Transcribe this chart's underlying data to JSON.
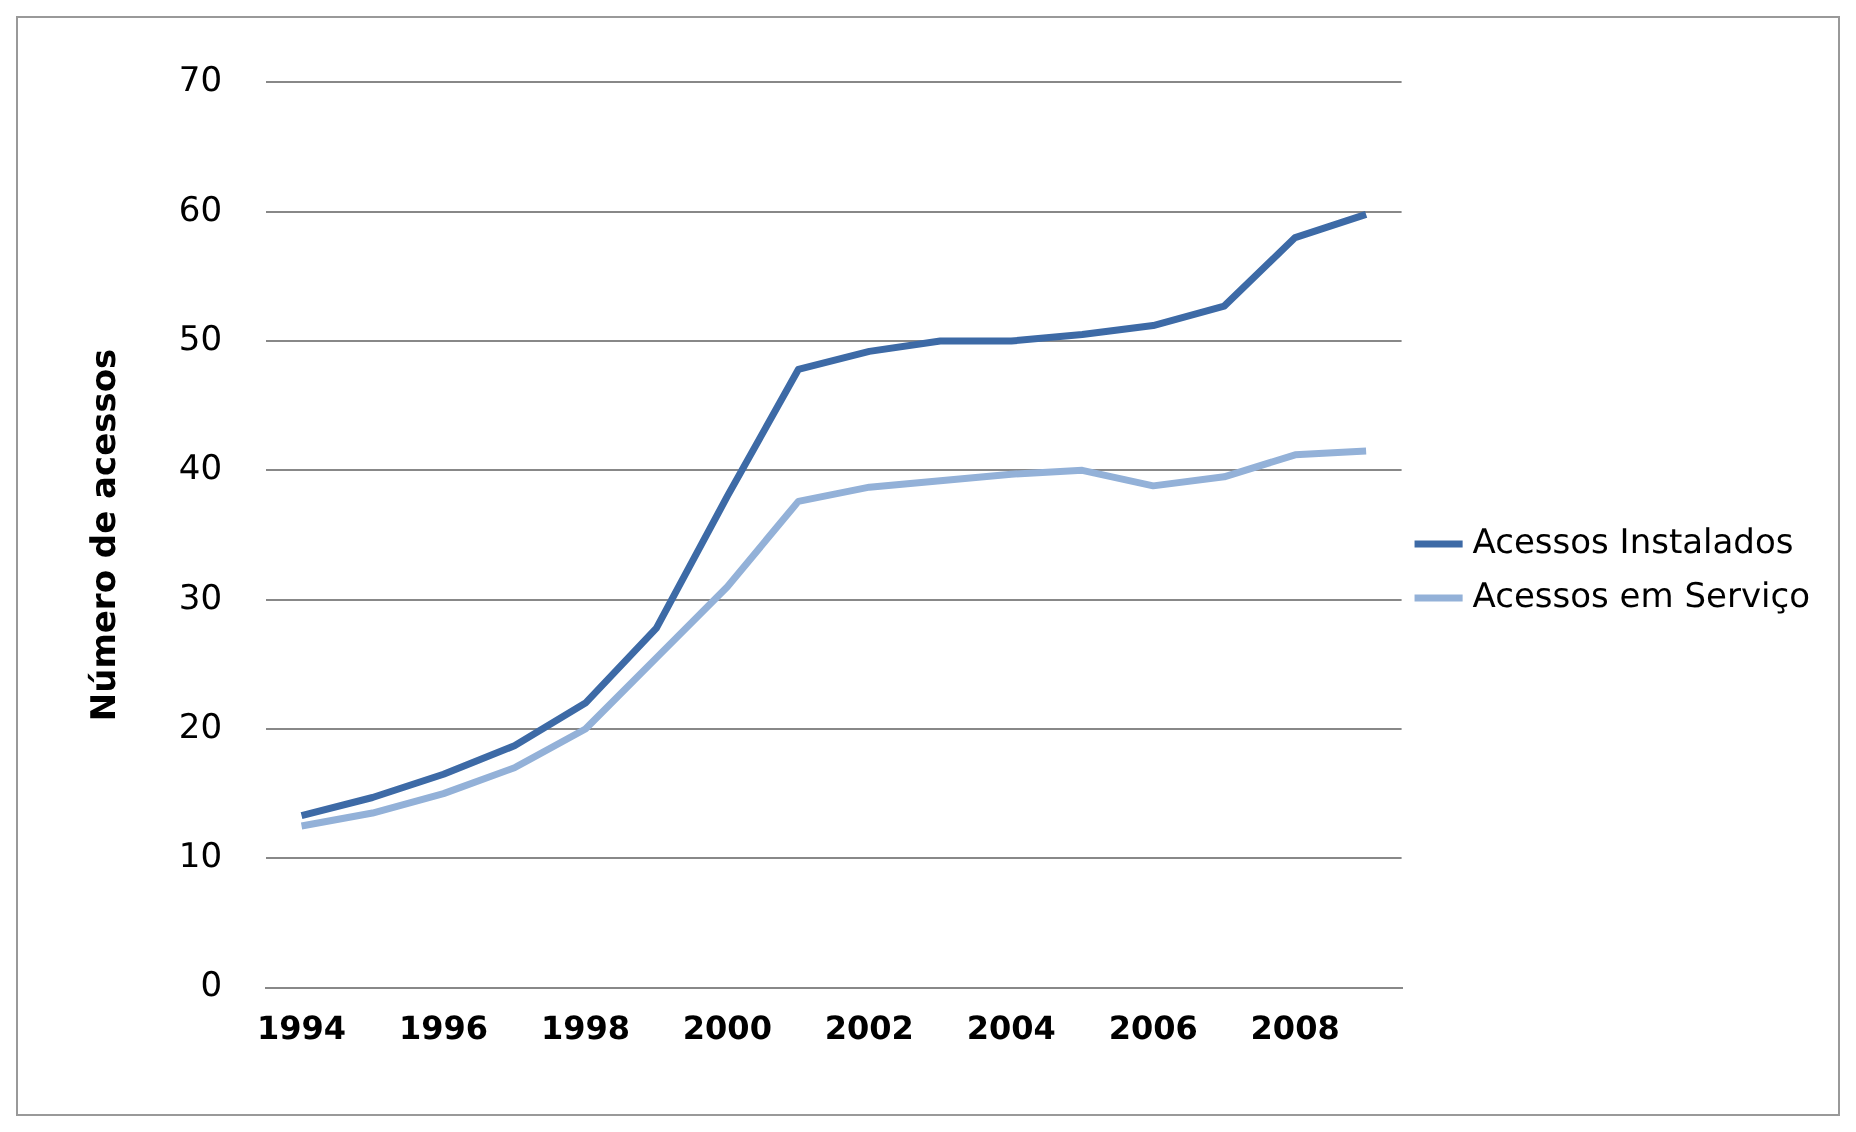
{
  "chart_data": {
    "type": "line",
    "ylabel": "Número de acessos",
    "categories": [
      "1994",
      null,
      "1996",
      null,
      "1998",
      null,
      "2000",
      null,
      "2002",
      null,
      "2004",
      null,
      "2006",
      null,
      "2008",
      null
    ],
    "series": [
      {
        "name": "Acessos Instalados",
        "color": "#3d6aa6",
        "values": [
          13.3,
          14.7,
          16.5,
          18.7,
          22,
          27.8,
          38,
          47.8,
          49.2,
          50,
          50,
          50.5,
          51.2,
          52.7,
          58,
          59.8
        ]
      },
      {
        "name": "Acessos em Serviço",
        "color": "#93b1d8",
        "values": [
          12.5,
          13.5,
          15,
          17,
          20,
          25.5,
          31,
          37.6,
          38.7,
          39.2,
          39.7,
          40,
          38.8,
          39.5,
          41.2,
          41.5
        ]
      }
    ],
    "ylim": [
      0,
      70
    ],
    "yticks": [
      0,
      10,
      20,
      30,
      40,
      50,
      60,
      70
    ],
    "grid": "y",
    "legend": "right",
    "marker": "none",
    "line_style": "solid"
  }
}
